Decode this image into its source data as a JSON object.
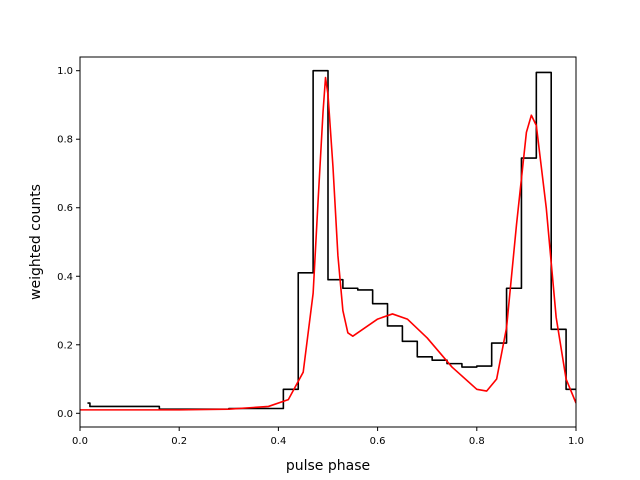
{
  "chart_data": {
    "type": "line",
    "title": "",
    "xlabel": "pulse phase",
    "ylabel": "weighted counts",
    "xlim": [
      0.0,
      1.0
    ],
    "ylim": [
      -0.04,
      1.04
    ],
    "xticks": [
      0.0,
      0.2,
      0.4,
      0.6,
      0.8,
      1.0
    ],
    "xtick_labels": [
      "0.0",
      "0.2",
      "0.4",
      "0.6",
      "0.8",
      "1.0"
    ],
    "yticks": [
      0.0,
      0.2,
      0.4,
      0.6,
      0.8,
      1.0
    ],
    "ytick_labels": [
      "0.0",
      "0.2",
      "0.4",
      "0.6",
      "0.8",
      "1.0"
    ],
    "grid": false,
    "legend": false,
    "series": [
      {
        "style": "step",
        "color": "#000000",
        "bin_edges": [
          0.015,
          0.02,
          0.16,
          0.3,
          0.41,
          0.44,
          0.47,
          0.5,
          0.53,
          0.56,
          0.59,
          0.62,
          0.65,
          0.68,
          0.71,
          0.74,
          0.77,
          0.8,
          0.83,
          0.86,
          0.89,
          0.92,
          0.95,
          0.98,
          1.0
        ],
        "values": [
          0.03,
          0.02,
          0.012,
          0.014,
          0.07,
          0.41,
          1.0,
          0.39,
          0.365,
          0.36,
          0.32,
          0.255,
          0.21,
          0.165,
          0.155,
          0.145,
          0.135,
          0.138,
          0.205,
          0.365,
          0.745,
          0.995,
          0.245,
          0.07
        ]
      },
      {
        "style": "line",
        "color": "#ff0000",
        "x": [
          0.0,
          0.1,
          0.2,
          0.3,
          0.38,
          0.42,
          0.45,
          0.47,
          0.48,
          0.49,
          0.495,
          0.5,
          0.51,
          0.52,
          0.53,
          0.54,
          0.55,
          0.6,
          0.63,
          0.66,
          0.7,
          0.75,
          0.8,
          0.82,
          0.84,
          0.86,
          0.88,
          0.9,
          0.91,
          0.92,
          0.94,
          0.96,
          0.98,
          1.0
        ],
        "y": [
          0.01,
          0.01,
          0.01,
          0.012,
          0.02,
          0.04,
          0.12,
          0.35,
          0.62,
          0.88,
          0.98,
          0.93,
          0.72,
          0.46,
          0.3,
          0.235,
          0.225,
          0.275,
          0.29,
          0.275,
          0.22,
          0.135,
          0.07,
          0.065,
          0.1,
          0.25,
          0.55,
          0.82,
          0.87,
          0.84,
          0.6,
          0.28,
          0.1,
          0.03
        ]
      }
    ]
  }
}
